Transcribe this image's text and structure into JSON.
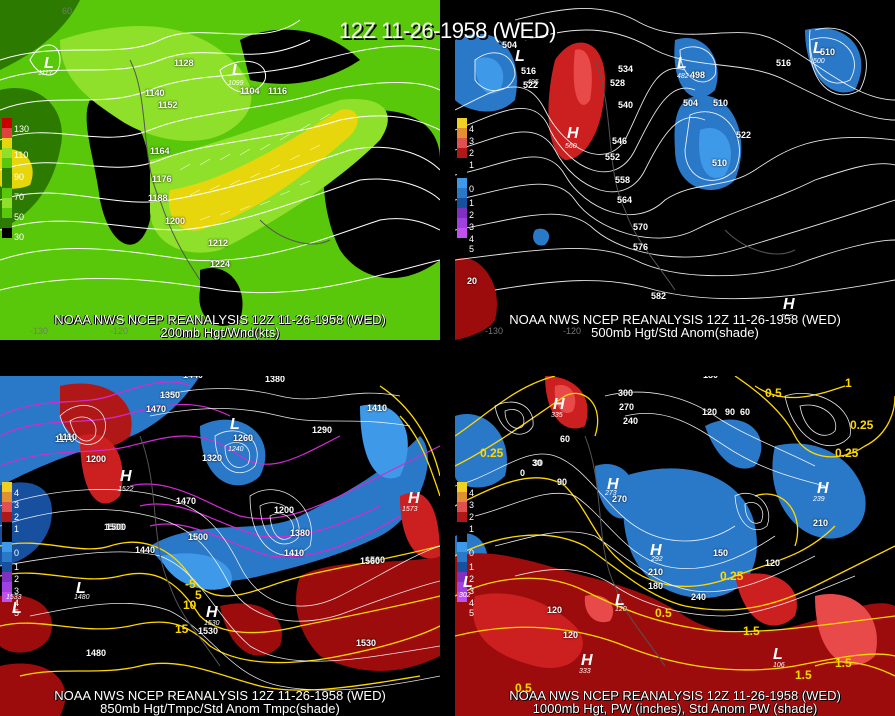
{
  "title": "12Z 11-26-1958 (WED)",
  "panels": [
    {
      "id": "p1",
      "caption1": "NOAA NWS NCEP REANALYSIS 12Z 11-26-1958 (WED)",
      "caption2": "200mb Hgt/Wnd(kts)",
      "scale": [
        "130",
        "110",
        "90",
        "70",
        "50",
        "30"
      ],
      "contours": [
        "1128",
        "1140",
        "1152",
        "1164",
        "1176",
        "1188",
        "1200",
        "1212",
        "1224",
        "1104",
        "1116"
      ],
      "lows": [
        {
          "label": "L",
          "value": "1117"
        },
        {
          "label": "L",
          "value": "1099"
        }
      ],
      "lon_labels": [
        "60",
        "-130",
        "-120"
      ]
    },
    {
      "id": "p2",
      "caption1": "NOAA NWS NCEP REANALYSIS 12Z 11-26-1958 (WED)",
      "caption2": "500mb Hgt/Std Anom(shade)",
      "scale": [
        "4",
        "3",
        "2",
        "1",
        "0",
        "1",
        "2",
        "3",
        "4",
        "5"
      ],
      "contours": [
        "504",
        "516",
        "522",
        "528",
        "534",
        "540",
        "546",
        "552",
        "558",
        "564",
        "570",
        "576",
        "582",
        "498",
        "504",
        "510",
        "510",
        "522",
        "516",
        "510",
        "20"
      ],
      "lows": [
        {
          "label": "L",
          "value": "495"
        },
        {
          "label": "L",
          "value": "482"
        },
        {
          "label": "L",
          "value": "500"
        }
      ],
      "highs": [
        {
          "label": "H",
          "value": "560"
        },
        {
          "label": "H",
          "value": "586"
        }
      ],
      "lon_labels": [
        "-130",
        "-120"
      ]
    },
    {
      "id": "p3",
      "caption1": "NOAA NWS NCEP REANALYSIS 12Z 11-26-1958 (WED)",
      "caption2": "850mb Hgt/Tmpc/Std Anom Tmpc(shade)",
      "scale": [
        "4",
        "3",
        "2",
        "1",
        "0",
        "1",
        "2",
        "3",
        "4",
        "5"
      ],
      "contours": [
        "1440",
        "1380",
        "1350",
        "1470",
        "1260",
        "1320",
        "1290",
        "1410",
        "1170",
        "1200",
        "1500",
        "1470",
        "1200",
        "1380",
        "1410",
        "1500",
        "1440",
        "1560",
        "1530",
        "1530",
        "1500",
        "1560",
        "1480",
        "1110"
      ],
      "temps": [
        "-5",
        "5",
        "10",
        "15"
      ],
      "lows": [
        {
          "label": "L",
          "value": "1240"
        },
        {
          "label": "L",
          "value": "1480"
        },
        {
          "label": "L",
          "value": "1533"
        }
      ],
      "highs": [
        {
          "label": "H",
          "value": "1522"
        },
        {
          "label": "H",
          "value": "1573"
        },
        {
          "label": "H",
          "value": "1530"
        }
      ]
    },
    {
      "id": "p4",
      "caption1": "NOAA NWS NCEP REANALYSIS 12Z 11-26-1958 (WED)",
      "caption2": "1000mb Hgt, PW (inches), Std Anom PW (shade)",
      "scale": [
        "4",
        "3",
        "2",
        "1",
        "0",
        "1",
        "2",
        "3",
        "4",
        "5"
      ],
      "contours": [
        "180",
        "300",
        "270",
        "240",
        "120",
        "90",
        "60",
        "60",
        "90",
        "30",
        "0",
        "270",
        "150",
        "120",
        "210",
        "180",
        "240",
        "120",
        "120",
        "210",
        "30"
      ],
      "pw": [
        "0.25",
        "0.5",
        "0.25",
        "0.5",
        "0.25",
        "1",
        "1.5",
        "1.5",
        "0.25",
        "0.5",
        "1.5"
      ],
      "lows": [
        {
          "label": "L",
          "value": "302"
        },
        {
          "label": "L",
          "value": "120"
        },
        {
          "label": "L",
          "value": "106"
        }
      ],
      "highs": [
        {
          "label": "H",
          "value": "273"
        },
        {
          "label": "H",
          "value": "292"
        },
        {
          "label": "H",
          "value": "335"
        },
        {
          "label": "H",
          "value": "239"
        },
        {
          "label": "H",
          "value": "333"
        }
      ]
    }
  ]
}
